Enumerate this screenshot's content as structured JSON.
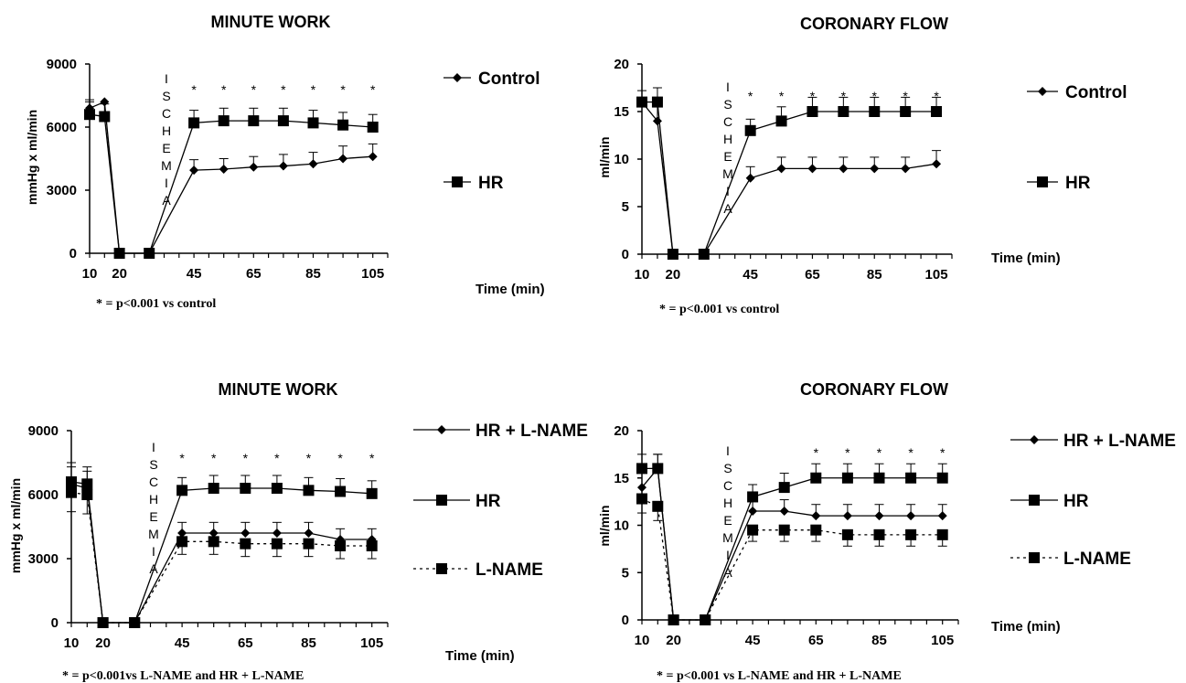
{
  "chart_data": [
    {
      "type": "line",
      "title": "MINUTE WORK",
      "ylabel": "mmHg x ml/min",
      "xlabel": "Time (min)",
      "ylim": [
        0,
        9000
      ],
      "yticks": [
        "0",
        "3000",
        "6000",
        "9000"
      ],
      "xticks": [
        "10",
        "20",
        "45",
        "65",
        "85",
        "105"
      ],
      "ischemia_label": "ISCHEMIA",
      "footnote": "* = p<0.001 vs control",
      "legend_position": "right",
      "x": [
        10,
        15,
        20,
        30,
        45,
        55,
        65,
        75,
        85,
        95,
        105
      ],
      "series": [
        {
          "name": "Control",
          "marker": "diamond",
          "dashed": false,
          "values": [
            6900,
            7200,
            0,
            0,
            3950,
            4000,
            4100,
            4150,
            4250,
            4500,
            4600
          ],
          "errors": [
            300,
            0,
            0,
            0,
            500,
            500,
            500,
            550,
            550,
            600,
            600
          ]
        },
        {
          "name": "HR",
          "marker": "square",
          "dashed": false,
          "values": [
            6600,
            6500,
            0,
            0,
            6200,
            6300,
            6300,
            6300,
            6200,
            6100,
            6000
          ],
          "errors": [
            700,
            600,
            0,
            0,
            600,
            600,
            600,
            600,
            600,
            600,
            600
          ]
        }
      ],
      "significance": {
        "symbol": "*",
        "x": [
          45,
          55,
          65,
          75,
          85,
          95,
          105
        ]
      }
    },
    {
      "type": "line",
      "title": "CORONARY FLOW",
      "ylabel": "ml/min",
      "xlabel": "Time (min)",
      "ylim": [
        0,
        20
      ],
      "yticks": [
        "0",
        "5",
        "10",
        "15",
        "20"
      ],
      "xticks": [
        "10",
        "20",
        "45",
        "65",
        "85",
        "105"
      ],
      "ischemia_label": "ISCHEMIA",
      "footnote": "* = p<0.001 vs control",
      "legend_position": "right",
      "x": [
        10,
        15,
        20,
        30,
        45,
        55,
        65,
        75,
        85,
        95,
        105
      ],
      "series": [
        {
          "name": "Control",
          "marker": "diamond",
          "dashed": false,
          "values": [
            16,
            14,
            0,
            0,
            8,
            9,
            9,
            9,
            9,
            9,
            9.5
          ],
          "errors": [
            0,
            2,
            0,
            0,
            1.2,
            1.2,
            1.2,
            1.2,
            1.2,
            1.2,
            1.4
          ]
        },
        {
          "name": "HR",
          "marker": "square",
          "dashed": false,
          "values": [
            16,
            16,
            0,
            0,
            13,
            14,
            15,
            15,
            15,
            15,
            15
          ],
          "errors": [
            1.2,
            1.5,
            0,
            0,
            1.2,
            1.5,
            1.5,
            1.5,
            1.5,
            1.5,
            1.5
          ]
        }
      ],
      "significance": {
        "symbol": "*",
        "x": [
          45,
          55,
          65,
          75,
          85,
          95,
          105
        ]
      }
    },
    {
      "type": "line",
      "title": "MINUTE WORK",
      "ylabel": "mmHg x ml/min",
      "xlabel": "Time (min)",
      "ylim": [
        0,
        9000
      ],
      "yticks": [
        "0",
        "3000",
        "6000",
        "9000"
      ],
      "xticks": [
        "10",
        "20",
        "45",
        "65",
        "85",
        "105"
      ],
      "ischemia_label": "ISCHEMIA",
      "footnote": "* = p<0.001vs L-NAME and HR + L-NAME",
      "legend_position": "right",
      "x": [
        10,
        15,
        20,
        30,
        45,
        55,
        65,
        75,
        85,
        95,
        105
      ],
      "series": [
        {
          "name": "HR + L-NAME",
          "marker": "diamond",
          "dashed": false,
          "values": [
            6500,
            6300,
            0,
            0,
            4200,
            4200,
            4200,
            4200,
            4200,
            3900,
            3900
          ],
          "errors": [
            1000,
            1000,
            0,
            0,
            500,
            500,
            500,
            500,
            500,
            500,
            500
          ]
        },
        {
          "name": "HR",
          "marker": "square",
          "dashed": false,
          "values": [
            6600,
            6500,
            0,
            0,
            6200,
            6300,
            6300,
            6300,
            6200,
            6150,
            6050
          ],
          "errors": [
            700,
            600,
            0,
            0,
            600,
            600,
            600,
            600,
            600,
            600,
            600
          ]
        },
        {
          "name": "L-NAME",
          "marker": "square",
          "dashed": true,
          "values": [
            6100,
            6000,
            0,
            0,
            3800,
            3800,
            3700,
            3700,
            3700,
            3600,
            3600
          ],
          "errors": [
            900,
            900,
            0,
            0,
            600,
            600,
            600,
            600,
            600,
            600,
            600
          ]
        }
      ],
      "significance": {
        "symbol": "*",
        "x": [
          45,
          55,
          65,
          75,
          85,
          95,
          105
        ]
      }
    },
    {
      "type": "line",
      "title": "CORONARY FLOW",
      "ylabel": "ml/min",
      "xlabel": "Time (min)",
      "ylim": [
        0,
        20
      ],
      "yticks": [
        "0",
        "5",
        "10",
        "15",
        "20"
      ],
      "xticks": [
        "10",
        "20",
        "45",
        "65",
        "85",
        "105"
      ],
      "ischemia_label": "ISCHEMIA",
      "footnote": "* = p<0.001 vs L-NAME and HR + L-NAME",
      "legend_position": "right",
      "x": [
        10,
        15,
        20,
        30,
        45,
        55,
        65,
        75,
        85,
        95,
        105
      ],
      "series": [
        {
          "name": "HR + L-NAME",
          "marker": "diamond",
          "dashed": false,
          "values": [
            14,
            16,
            0,
            0,
            11.5,
            11.5,
            11,
            11,
            11,
            11,
            11
          ],
          "errors": [
            1.5,
            1.5,
            0,
            0,
            1.2,
            1.2,
            1.2,
            1.2,
            1.2,
            1.2,
            1.2
          ]
        },
        {
          "name": "HR",
          "marker": "square",
          "dashed": false,
          "values": [
            16,
            16,
            0,
            0,
            13,
            14,
            15,
            15,
            15,
            15,
            15
          ],
          "errors": [
            1.5,
            1.5,
            0,
            0,
            1.3,
            1.5,
            1.5,
            1.5,
            1.5,
            1.5,
            1.5
          ]
        },
        {
          "name": "L-NAME",
          "marker": "square",
          "dashed": true,
          "values": [
            12.8,
            12,
            0,
            0,
            9.5,
            9.5,
            9.5,
            9,
            9,
            9,
            9
          ],
          "errors": [
            1.5,
            1.5,
            0,
            0,
            1.2,
            1.2,
            1.2,
            1.2,
            1.2,
            1.2,
            1.2
          ]
        }
      ],
      "significance": {
        "symbol": "*",
        "x": [
          65,
          75,
          85,
          95,
          105
        ]
      }
    }
  ]
}
